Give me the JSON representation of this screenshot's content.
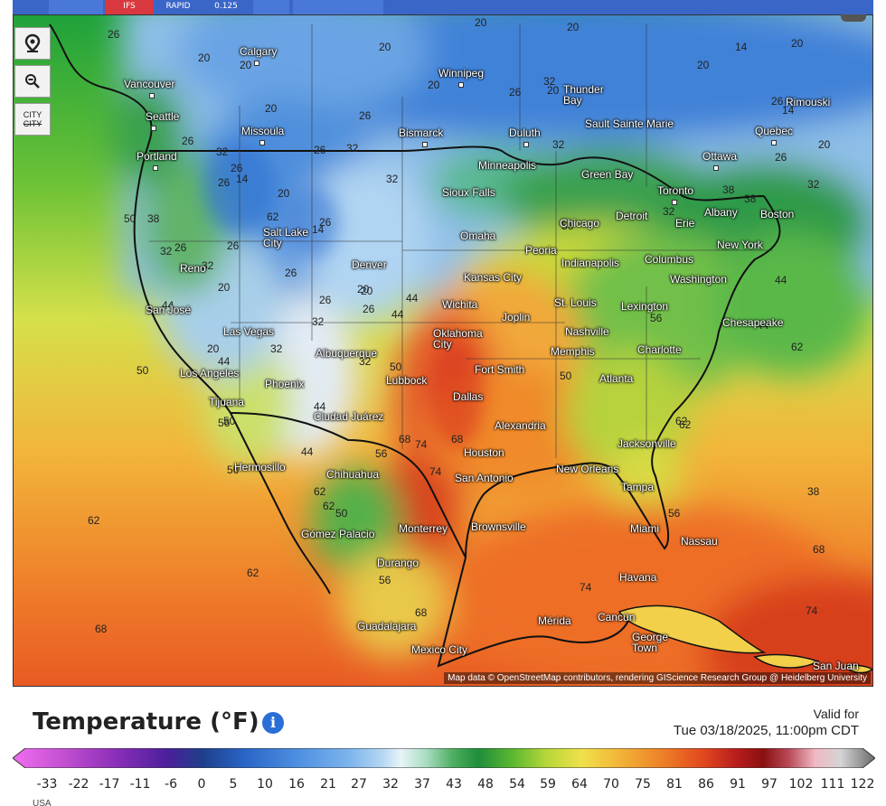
{
  "top_tabs": [
    "IFS",
    "RAPID",
    "0.125"
  ],
  "map": {
    "attribution": "Map data © OpenStreetMap contributors, rendering GIScience Research Group @ Heidelberg University",
    "controls": {
      "location": "location-pin-icon",
      "zoom": "zoom-out-icon",
      "city_label_top": "CITY",
      "city_label_bottom": "CITY"
    },
    "cities": [
      {
        "name": "Calgary"
      },
      {
        "name": "Vancouver"
      },
      {
        "name": "Seattle"
      },
      {
        "name": "Missoula"
      },
      {
        "name": "Portland"
      },
      {
        "name": "Winnipeg"
      },
      {
        "name": "Thunder Bay"
      },
      {
        "name": "Sault Sainte Marie"
      },
      {
        "name": "Rimouski"
      },
      {
        "name": "Quebec"
      },
      {
        "name": "Ottawa"
      },
      {
        "name": "Bismarck"
      },
      {
        "name": "Duluth"
      },
      {
        "name": "Minneapolis"
      },
      {
        "name": "Green Bay"
      },
      {
        "name": "Toronto"
      },
      {
        "name": "Albany"
      },
      {
        "name": "Boston"
      },
      {
        "name": "Sioux Falls"
      },
      {
        "name": "Chicago"
      },
      {
        "name": "Detroit"
      },
      {
        "name": "Erie"
      },
      {
        "name": "New York"
      },
      {
        "name": "Salt Lake City"
      },
      {
        "name": "Omaha"
      },
      {
        "name": "Peoria"
      },
      {
        "name": "Indianapolis"
      },
      {
        "name": "Columbus"
      },
      {
        "name": "Reno"
      },
      {
        "name": "Denver"
      },
      {
        "name": "Kansas City"
      },
      {
        "name": "Washington"
      },
      {
        "name": "San José"
      },
      {
        "name": "Wichita"
      },
      {
        "name": "Joplin"
      },
      {
        "name": "St. Louis"
      },
      {
        "name": "Lexington"
      },
      {
        "name": "Chesapeake"
      },
      {
        "name": "Las Vegas"
      },
      {
        "name": "Oklahoma City"
      },
      {
        "name": "Nashville"
      },
      {
        "name": "Albuquerque"
      },
      {
        "name": "Memphis"
      },
      {
        "name": "Charlotte"
      },
      {
        "name": "Los Angeles"
      },
      {
        "name": "Fort Smith"
      },
      {
        "name": "Lubbock"
      },
      {
        "name": "Phoenix"
      },
      {
        "name": "Atlanta"
      },
      {
        "name": "Tijuana"
      },
      {
        "name": "Dallas"
      },
      {
        "name": "Ciudad Juárez"
      },
      {
        "name": "Alexandria"
      },
      {
        "name": "Jacksonville"
      },
      {
        "name": "Houston"
      },
      {
        "name": "Hermosillo"
      },
      {
        "name": "New Orleans"
      },
      {
        "name": "San Antonio"
      },
      {
        "name": "Chihuahua"
      },
      {
        "name": "Tampa"
      },
      {
        "name": "Brownsville"
      },
      {
        "name": "Monterrey"
      },
      {
        "name": "Gómez Palacio"
      },
      {
        "name": "Miami"
      },
      {
        "name": "Nassau"
      },
      {
        "name": "Durango"
      },
      {
        "name": "Havana"
      },
      {
        "name": "Mérida"
      },
      {
        "name": "Cancún"
      },
      {
        "name": "George Town"
      },
      {
        "name": "Guadalajara"
      },
      {
        "name": "Mexico City"
      },
      {
        "name": "San Juan"
      }
    ],
    "isotherm_labels": [
      "20",
      "20",
      "26",
      "20",
      "14",
      "20",
      "20",
      "26",
      "32",
      "26",
      "26",
      "32",
      "32",
      "26",
      "26",
      "14",
      "20",
      "20",
      "26",
      "26",
      "32",
      "38",
      "50",
      "38",
      "32",
      "26",
      "26",
      "32",
      "20",
      "20",
      "26",
      "26",
      "26",
      "32",
      "44",
      "44",
      "20",
      "44",
      "32",
      "32",
      "50",
      "44",
      "56",
      "44",
      "56",
      "62",
      "62",
      "68",
      "56",
      "74",
      "68",
      "74",
      "50",
      "62",
      "50",
      "56",
      "44",
      "56",
      "68",
      "62",
      "68",
      "74",
      "74",
      "62",
      "68",
      "38",
      "62",
      "32",
      "32",
      "20",
      "14",
      "20",
      "26",
      "44",
      "50",
      "56",
      "62",
      "38",
      "44",
      "56",
      "50",
      "62",
      "32",
      "26",
      "20",
      "14",
      "20",
      "20",
      "20"
    ]
  },
  "legend": {
    "title": "Temperature (°F)",
    "info_icon": "info-icon",
    "valid_label": "Valid for",
    "valid_time": "Tue 03/18/2025, 11:00pm CDT",
    "ticks": [
      "-33",
      "-22",
      "-17",
      "-11",
      "-6",
      "0",
      "5",
      "10",
      "16",
      "21",
      "27",
      "32",
      "37",
      "43",
      "48",
      "54",
      "59",
      "64",
      "70",
      "75",
      "81",
      "86",
      "91",
      "97",
      "102",
      "111",
      "122"
    ],
    "region": "USA"
  }
}
